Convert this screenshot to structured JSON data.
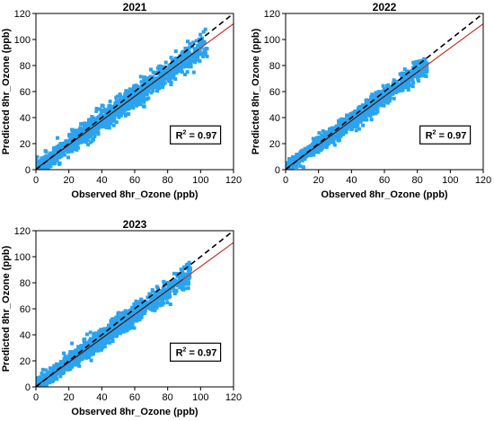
{
  "chart_data": [
    {
      "type": "scatter",
      "title": "2021",
      "xlabel": "Observed 8hr_Ozone (ppb)",
      "ylabel": "Predicted 8hr_Ozone (ppb)",
      "xlim": [
        0,
        120
      ],
      "ylim": [
        0,
        120
      ],
      "xticks": [
        "0",
        "20",
        "40",
        "60",
        "80",
        "100",
        "120"
      ],
      "yticks": [
        "0",
        "20",
        "40",
        "60",
        "80",
        "100",
        "120"
      ],
      "r2_label": "R",
      "r2_exp": "2",
      "r2_value": " = 0.97",
      "r2_box_position": "right-middle",
      "obs_range": [
        0,
        104
      ],
      "scatter_spread": 5,
      "fit_line": {
        "slope": 0.93,
        "intercept": 0.5
      },
      "identity_line": {
        "slope": 1,
        "intercept": 0
      },
      "colors": {
        "points": "#2aa3f0",
        "fit": "#c0392b",
        "identity": "#000000",
        "inner_fit": "#1a1a1a"
      }
    },
    {
      "type": "scatter",
      "title": "2022",
      "xlabel": "Observed 8hr_Ozone (ppb)",
      "ylabel": "Predicted 8hr_Ozone (ppb)",
      "xlim": [
        0,
        120
      ],
      "ylim": [
        0,
        120
      ],
      "xticks": [
        "0",
        "20",
        "40",
        "60",
        "80",
        "100",
        "120"
      ],
      "yticks": [
        "0",
        "20",
        "40",
        "60",
        "80",
        "100",
        "120"
      ],
      "r2_label": "R",
      "r2_exp": "2",
      "r2_value": " = 0.97",
      "r2_box_position": "right-middle",
      "obs_range": [
        0,
        86
      ],
      "scatter_spread": 4,
      "fit_line": {
        "slope": 0.93,
        "intercept": 0.5
      },
      "identity_line": {
        "slope": 1,
        "intercept": 0
      },
      "colors": {
        "points": "#2aa3f0",
        "fit": "#c0392b",
        "identity": "#000000",
        "inner_fit": "#1a1a1a"
      }
    },
    {
      "type": "scatter",
      "title": "2023",
      "xlabel": "Observed 8hr_Ozone (ppb)",
      "ylabel": "Predicted 8hr_Ozone (ppb)",
      "xlim": [
        0,
        120
      ],
      "ylim": [
        0,
        120
      ],
      "xticks": [
        "0",
        "20",
        "40",
        "60",
        "80",
        "100",
        "120"
      ],
      "yticks": [
        "0",
        "20",
        "40",
        "60",
        "80",
        "100",
        "120"
      ],
      "r2_label": "R",
      "r2_exp": "2",
      "r2_value": " = 0.97",
      "r2_box_position": "right-middle",
      "obs_range": [
        0,
        94
      ],
      "scatter_spread": 4.5,
      "fit_line": {
        "slope": 0.92,
        "intercept": 0.5
      },
      "identity_line": {
        "slope": 1,
        "intercept": 0
      },
      "colors": {
        "points": "#2aa3f0",
        "fit": "#c0392b",
        "identity": "#000000",
        "inner_fit": "#1a1a1a"
      }
    }
  ]
}
